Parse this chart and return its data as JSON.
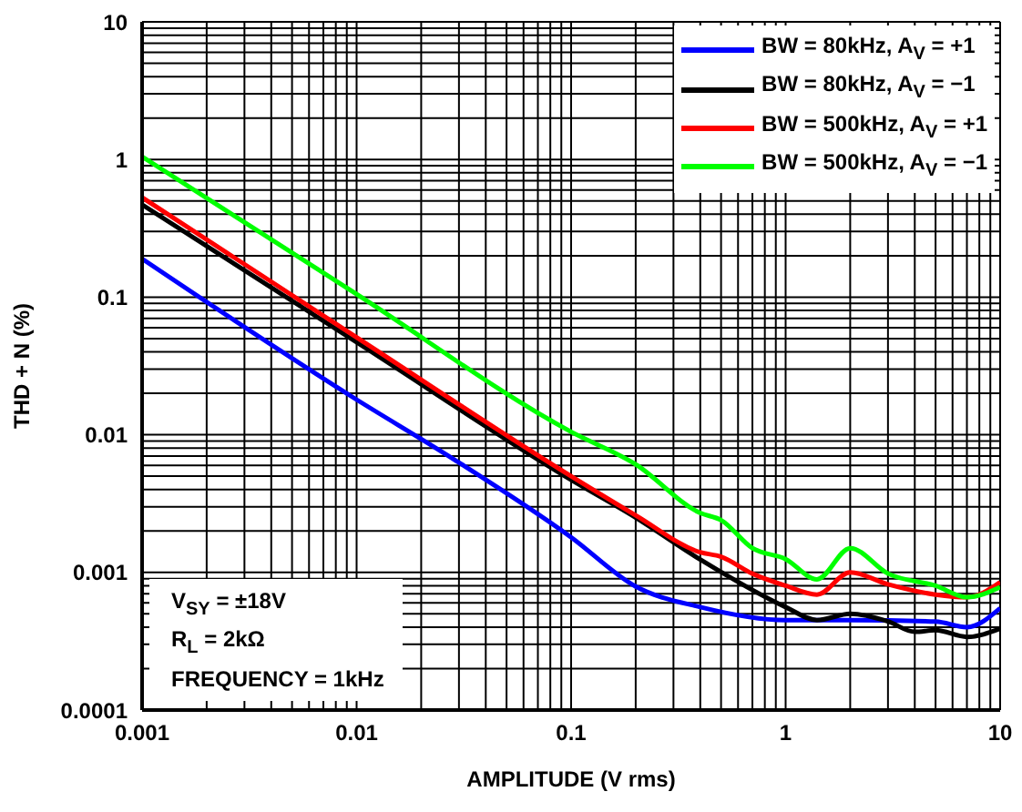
{
  "chart_data": {
    "type": "line",
    "xlabel": "AMPLITUDE (V rms)",
    "ylabel": "THD + N (%)",
    "log": "xy",
    "xlim": [
      0.001,
      10
    ],
    "ylim": [
      0.0001,
      10
    ],
    "xticks": [
      0.001,
      {
        "value": 0.002,
        "label": null
      },
      {
        "value": 0.003,
        "label": null
      },
      {
        "value": 0.004,
        "label": null
      },
      {
        "value": 0.005,
        "label": null
      },
      {
        "value": 0.006,
        "label": null
      },
      {
        "value": 0.007,
        "label": null
      },
      {
        "value": 0.008,
        "label": null
      },
      {
        "value": 0.009,
        "label": null
      },
      0.01,
      {
        "value": 0.02,
        "label": null
      },
      {
        "value": 0.03,
        "label": null
      },
      {
        "value": 0.04,
        "label": null
      },
      {
        "value": 0.05,
        "label": null
      },
      {
        "value": 0.06,
        "label": null
      },
      {
        "value": 0.07,
        "label": null
      },
      {
        "value": 0.08,
        "label": null
      },
      {
        "value": 0.09,
        "label": null
      },
      0.1,
      {
        "value": 0.2,
        "label": null
      },
      {
        "value": 0.3,
        "label": null
      },
      {
        "value": 0.4,
        "label": null
      },
      {
        "value": 0.5,
        "label": null
      },
      {
        "value": 0.6,
        "label": null
      },
      {
        "value": 0.7,
        "label": null
      },
      {
        "value": 0.8,
        "label": null
      },
      {
        "value": 0.9,
        "label": null
      },
      1,
      {
        "value": 2,
        "label": null
      },
      {
        "value": 3,
        "label": null
      },
      {
        "value": 4,
        "label": null
      },
      {
        "value": 5,
        "label": null
      },
      {
        "value": 6,
        "label": null
      },
      {
        "value": 7,
        "label": null
      },
      {
        "value": 8,
        "label": null
      },
      {
        "value": 9,
        "label": null
      },
      10
    ],
    "yticks": [
      0.0001,
      {
        "value": 0.0002,
        "label": null
      },
      {
        "value": 0.0003,
        "label": null
      },
      {
        "value": 0.0004,
        "label": null
      },
      {
        "value": 0.0005,
        "label": null
      },
      {
        "value": 0.0006,
        "label": null
      },
      {
        "value": 0.0007,
        "label": null
      },
      {
        "value": 0.0008,
        "label": null
      },
      {
        "value": 0.0009,
        "label": null
      },
      0.001,
      {
        "value": 0.002,
        "label": null
      },
      {
        "value": 0.003,
        "label": null
      },
      {
        "value": 0.004,
        "label": null
      },
      {
        "value": 0.005,
        "label": null
      },
      {
        "value": 0.006,
        "label": null
      },
      {
        "value": 0.007,
        "label": null
      },
      {
        "value": 0.008,
        "label": null
      },
      {
        "value": 0.009,
        "label": null
      },
      0.01,
      {
        "value": 0.02,
        "label": null
      },
      {
        "value": 0.03,
        "label": null
      },
      {
        "value": 0.04,
        "label": null
      },
      {
        "value": 0.05,
        "label": null
      },
      {
        "value": 0.06,
        "label": null
      },
      {
        "value": 0.07,
        "label": null
      },
      {
        "value": 0.08,
        "label": null
      },
      {
        "value": 0.09,
        "label": null
      },
      0.1,
      {
        "value": 0.2,
        "label": null
      },
      {
        "value": 0.3,
        "label": null
      },
      {
        "value": 0.4,
        "label": null
      },
      {
        "value": 0.5,
        "label": null
      },
      {
        "value": 0.6,
        "label": null
      },
      {
        "value": 0.7,
        "label": null
      },
      {
        "value": 0.8,
        "label": null
      },
      {
        "value": 0.9,
        "label": null
      },
      1,
      {
        "value": 2,
        "label": null
      },
      {
        "value": 3,
        "label": null
      },
      {
        "value": 4,
        "label": null
      },
      {
        "value": 5,
        "label": null
      },
      {
        "value": 6,
        "label": null
      },
      {
        "value": 7,
        "label": null
      },
      {
        "value": 8,
        "label": null
      },
      {
        "value": 9,
        "label": null
      },
      10
    ],
    "grid": true,
    "legend": "top right",
    "marker": "none",
    "annotations": [
      "V$_{SY}$ = ±18V",
      "R$_{L}$ = 2kΩ",
      "FREQUENCY = 1kHz"
    ],
    "series": [
      {
        "name": "BW = 80kHz, A$_{V}$ = +1",
        "color": "#0000ff",
        "x": [
          0.001,
          0.01,
          0.0265,
          0.1,
          0.2,
          0.4,
          1,
          2,
          5,
          7,
          10
        ],
        "values": [
          0.19,
          0.018,
          0.0071,
          0.0018,
          0.00079,
          0.00056,
          0.00045,
          0.00045,
          0.00044,
          0.0004,
          0.00055
        ]
      },
      {
        "name": "BW = 80kHz, A$_{V}$ = −1",
        "color": "#000000",
        "x": [
          0.001,
          0.01,
          0.1,
          0.2,
          0.4,
          1,
          1.4,
          2,
          3,
          4,
          5,
          7,
          10
        ],
        "values": [
          0.47,
          0.047,
          0.0047,
          0.0025,
          0.00124,
          0.00056,
          0.00045,
          0.0005,
          0.00044,
          0.00037,
          0.00038,
          0.00034,
          0.00039
        ]
      },
      {
        "name": "BW = 500kHz, A$_{V}$ = +1",
        "color": "#ff0000",
        "x": [
          0.001,
          0.01,
          0.1,
          0.2,
          0.4,
          0.5,
          0.7,
          1,
          1.4,
          2,
          3,
          5,
          7,
          10
        ],
        "values": [
          0.53,
          0.051,
          0.005,
          0.0026,
          0.0014,
          0.0013,
          0.00098,
          0.0008,
          0.00069,
          0.001,
          0.00082,
          0.00069,
          0.00066,
          0.00085
        ]
      },
      {
        "name": "BW = 500kHz, A$_{V}$ = −1",
        "color": "#00ff00",
        "x": [
          0.001,
          0.01,
          0.1,
          0.2,
          0.4,
          0.5,
          0.7,
          1,
          1.4,
          2,
          3,
          5,
          7,
          10
        ],
        "values": [
          1.05,
          0.105,
          0.0105,
          0.0061,
          0.0027,
          0.0024,
          0.0015,
          0.00125,
          0.00089,
          0.0015,
          0.00098,
          0.0008,
          0.00066,
          0.00078
        ]
      }
    ]
  }
}
